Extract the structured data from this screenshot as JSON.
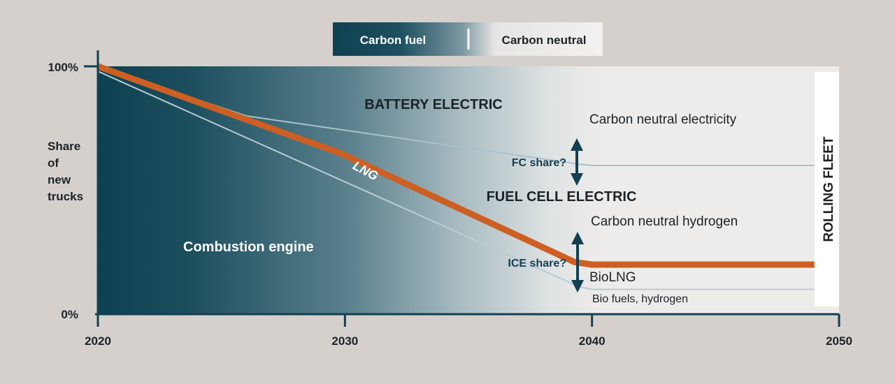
{
  "legend": {
    "carbon_fuel": "Carbon fuel",
    "carbon_neutral": "Carbon neutral"
  },
  "colors": {
    "background": "#d5d0cc",
    "dark_teal": "#0d4050",
    "plot_light": "#eeeceb",
    "lng_line": "#cd5f23",
    "arrow": "#123f52",
    "axis": "#123f52"
  },
  "labels": {
    "battery_electric": "BATTERY  ELECTRIC",
    "fuel_cell_electric": "FUEL CELL ELECTRIC",
    "combustion_engine": "Combustion engine",
    "lng": "LNG",
    "fc_share": "FC share?",
    "ice_share": "ICE share?",
    "carbon_neutral_electricity": "Carbon neutral electricity",
    "carbon_neutral_hydrogen": "Carbon neutral hydrogen",
    "biolng": "BioLNG",
    "bio_fuels_hydrogen": "Bio fuels, hydrogen",
    "rolling_fleet": "ROLLING  FLEET"
  },
  "chart_data": {
    "type": "area",
    "ylabel": [
      "Share",
      "of",
      "new",
      "trucks"
    ],
    "x_ticks": [
      2020,
      2030,
      2040,
      2050
    ],
    "x_tick_labels": [
      "2020",
      "2030",
      "2040",
      "2050"
    ],
    "y_tick_labels": [
      "100%",
      "0%"
    ],
    "xlim": [
      2020,
      2050
    ],
    "ylim": [
      0,
      100
    ],
    "series": [
      {
        "key": "combustion_boundary",
        "x": [
          2020,
          2039.5,
          2040,
          2049
        ],
        "y": [
          98,
          11,
          10,
          10
        ]
      },
      {
        "key": "lng_boundary",
        "x": [
          2020,
          2029.8,
          2039.3,
          2040,
          2049
        ],
        "y": [
          100,
          65,
          21,
          20,
          20
        ]
      },
      {
        "key": "fuel_cell_boundary",
        "x": [
          2020,
          2026,
          2039.5,
          2040,
          2049
        ],
        "y": [
          100,
          80,
          60.5,
          60,
          60
        ]
      }
    ]
  }
}
